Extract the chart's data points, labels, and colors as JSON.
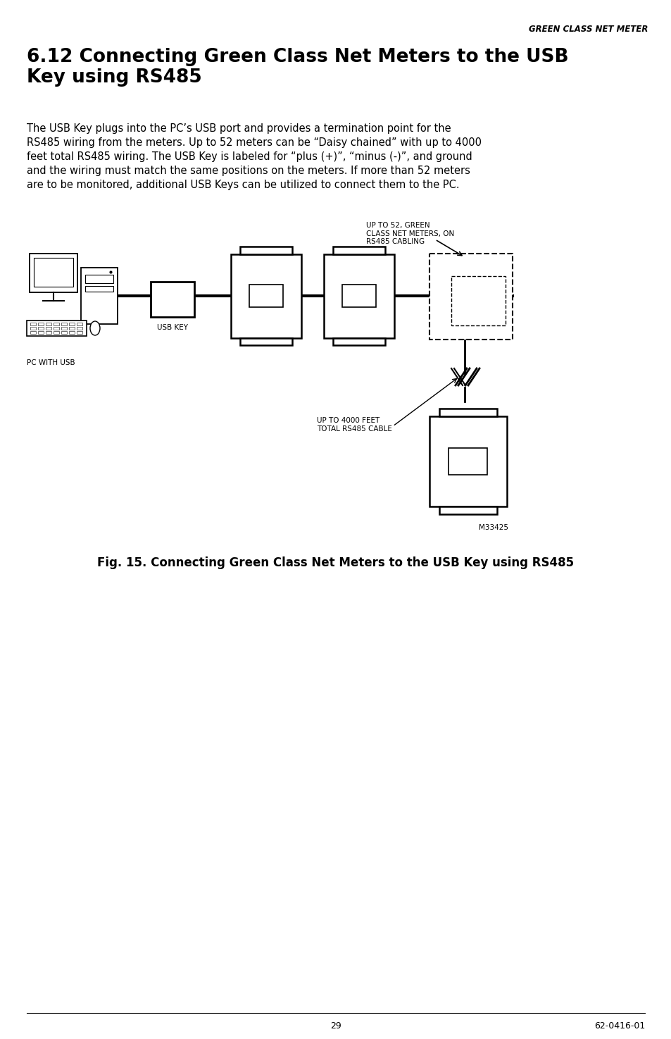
{
  "header_text": "GREEN CLASS NET METER",
  "section_title": "6.12 Connecting Green Class Net Meters to the USB\nKey using RS485",
  "body_text": "The USB Key plugs into the PC’s USB port and provides a termination point for the\nRS485 wiring from the meters. Up to 52 meters can be “Daisy chained” with up to 4000\nfeet total RS485 wiring. The USB Key is labeled for “plus (+)”, “minus (-)”, and ground\nand the wiring must match the same positions on the meters. If more than 52 meters\nare to be monitored, additional USB Keys can be utilized to connect them to the PC.",
  "fig_caption": "Fig. 15. Connecting Green Class Net Meters to the USB Key using RS485",
  "label_pc": "PC WITH USB",
  "label_usb": "USB KEY",
  "label_up52": "UP TO 52, GREEN\nCLASS NET METERS, ON\nRS485 CABLING",
  "label_4000ft": "UP TO 4000 FEET\nTOTAL RS485 CABLE",
  "label_m33425": "M33425",
  "page_number": "29",
  "doc_number": "62-0416-01",
  "bg_color": "#ffffff",
  "text_color": "#000000"
}
